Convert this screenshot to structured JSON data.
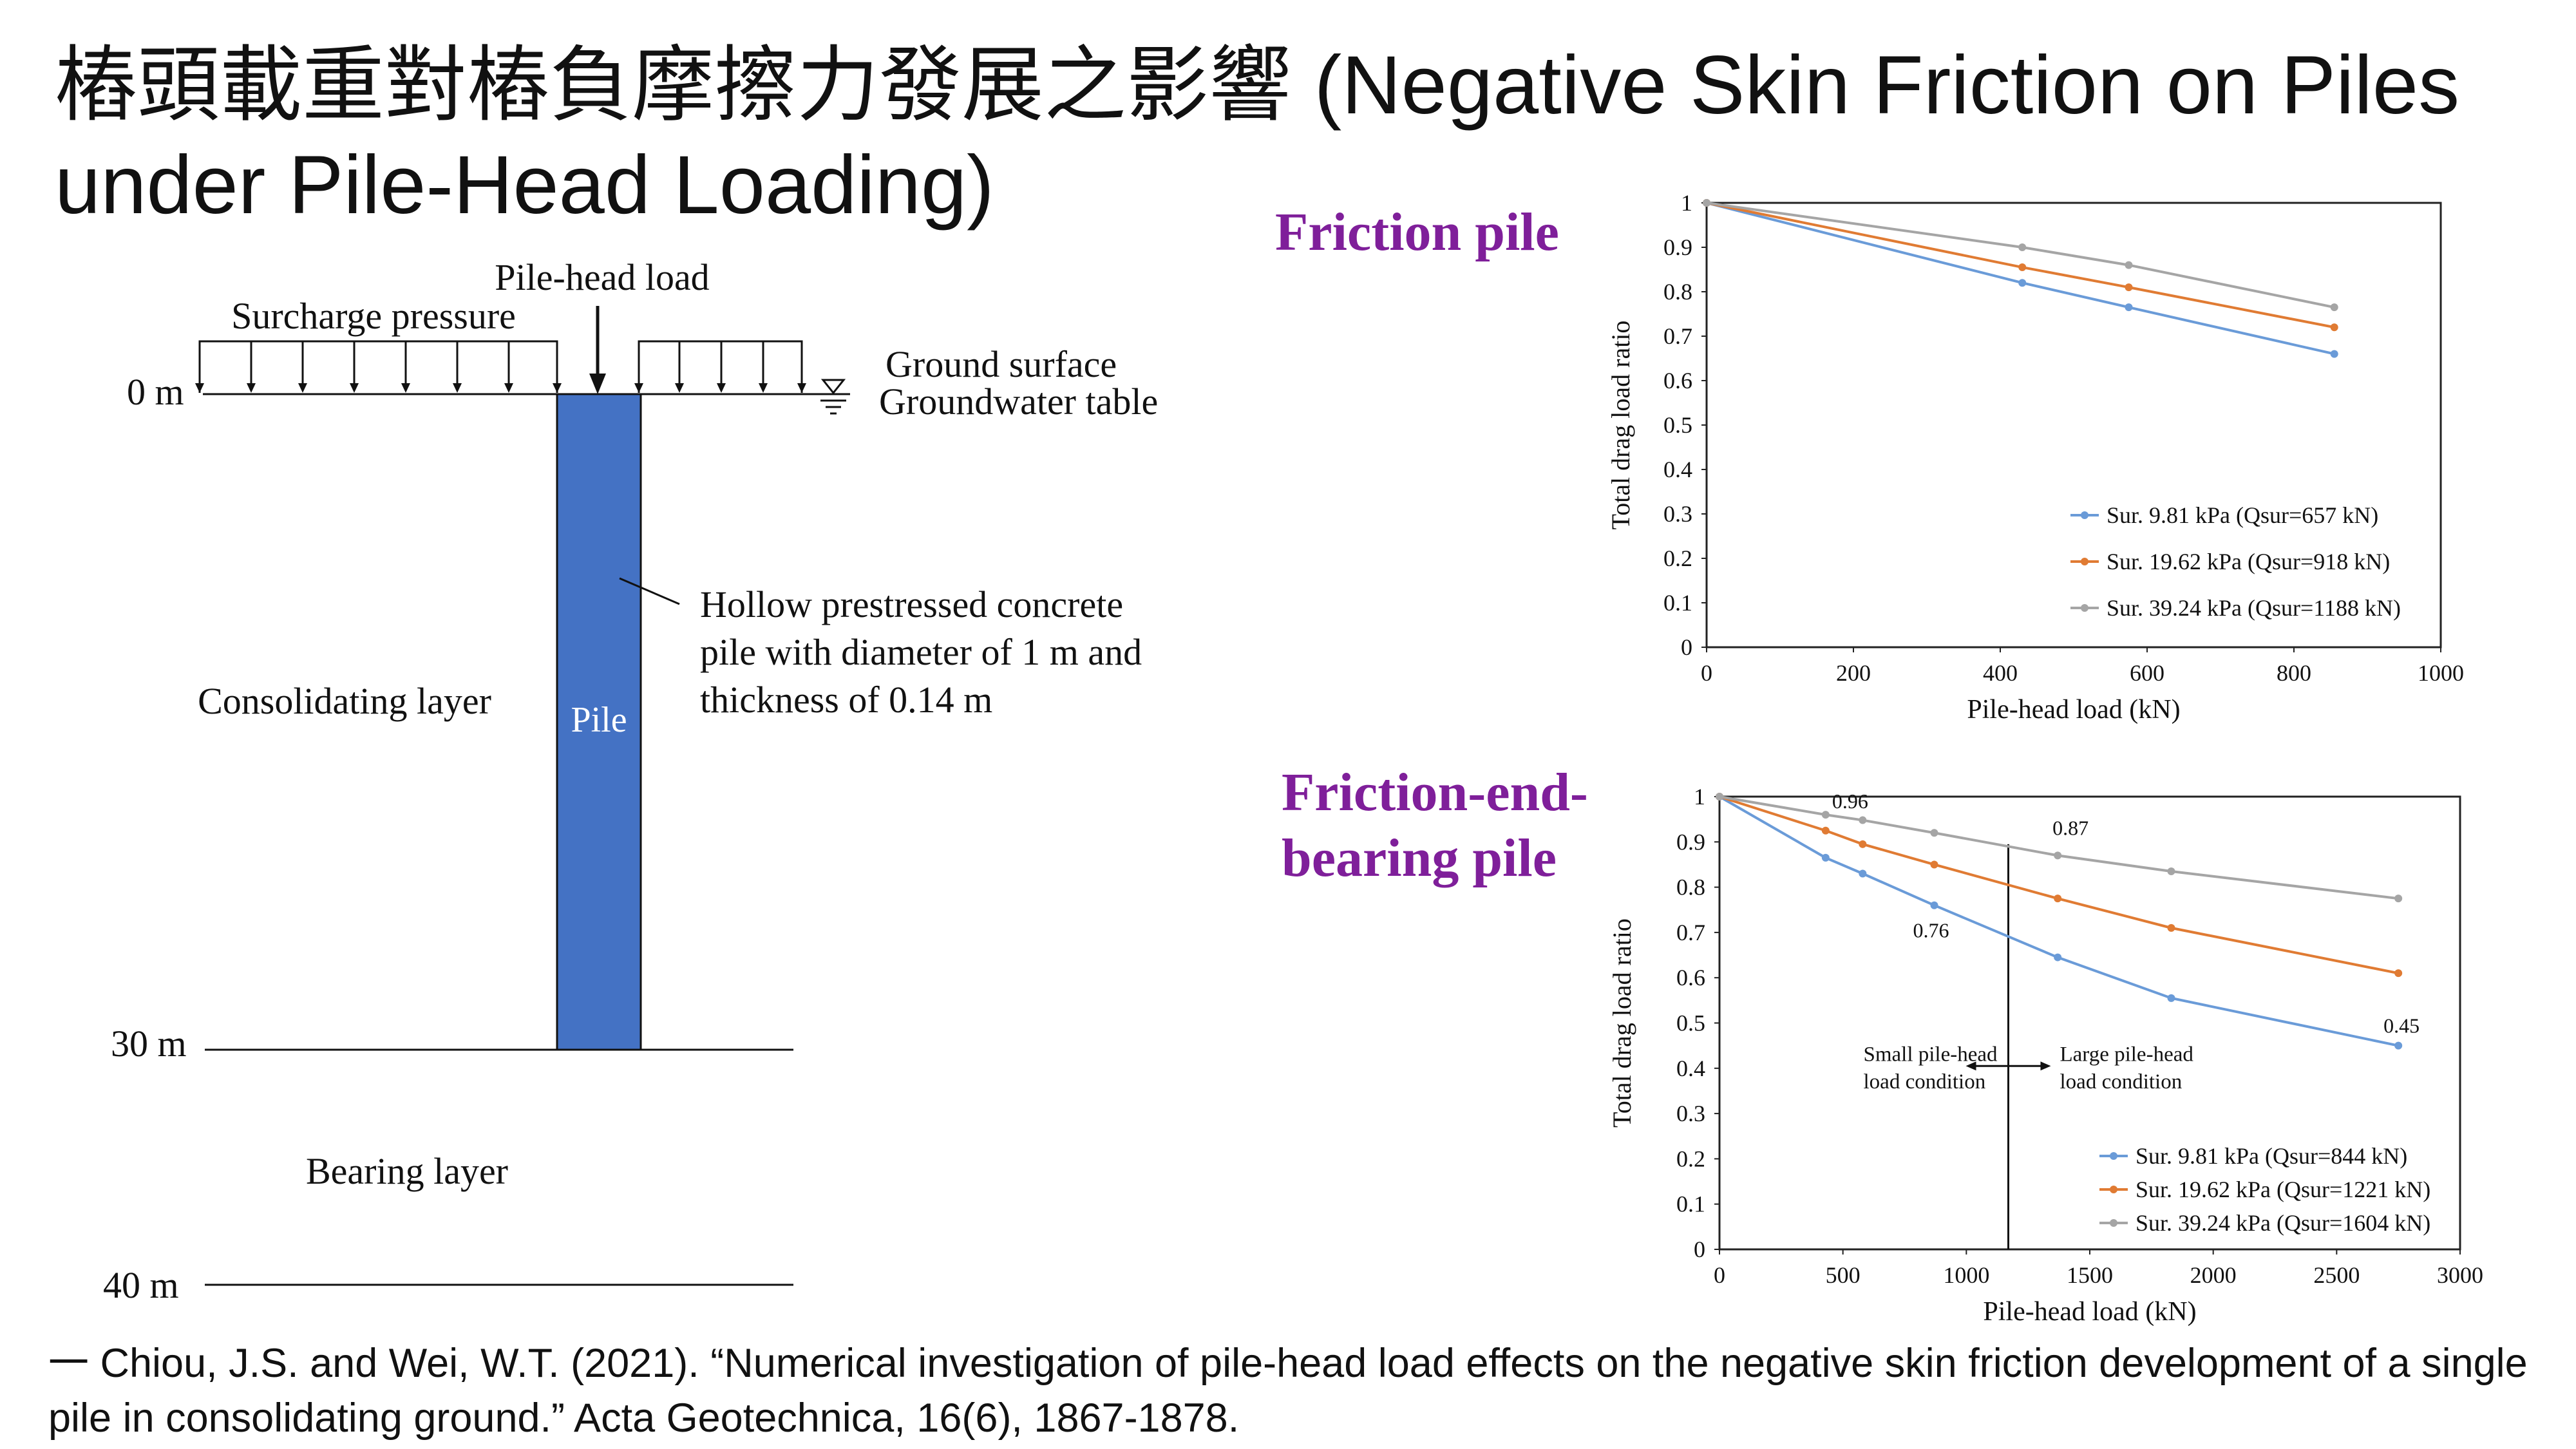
{
  "title": "樁頭載重對樁負摩擦力發展之影響 (Negative Skin Friction on Piles under Pile-Head Loading)",
  "diagram": {
    "pile_head_load": "Pile-head load",
    "surcharge": "Surcharge pressure",
    "ground_surface": "Ground surface",
    "groundwater": "Groundwater table",
    "depth_0": "0 m",
    "depth_30": "30 m",
    "depth_40": "40 m",
    "pile_label": "Pile",
    "pile_desc_1": "Hollow prestressed concrete",
    "pile_desc_2": "pile with diameter of 1 m and",
    "pile_desc_3": "thickness of 0.14 m",
    "consolidating": "Consolidating layer",
    "bearing": "Bearing layer",
    "pile_color": "#4472c4"
  },
  "friction_title": "Friction pile",
  "feb_title_1": "Friction-end-",
  "feb_title_2": "bearing pile",
  "colors": {
    "subtitle": "#7f1f9a",
    "blue": "#6a9bd8",
    "orange": "#e07b33",
    "gray": "#a5a5a5"
  },
  "chart_data": [
    {
      "type": "line",
      "xlabel": "Pile-head load (kN)",
      "ylabel": "Total drag load ratio",
      "xlim": [
        0,
        1000
      ],
      "ylim": [
        0,
        1
      ],
      "xticks": [
        "0",
        "200",
        "400",
        "600",
        "800",
        "1000"
      ],
      "yticks": [
        "0",
        "0.1",
        "0.2",
        "0.3",
        "0.4",
        "0.5",
        "0.6",
        "0.7",
        "0.8",
        "0.9",
        "1"
      ],
      "legend_position": "bottom-right",
      "series": [
        {
          "name": "Sur. 9.81 kPa (Qsur=657 kN)",
          "color": "#6a9bd8",
          "x": [
            0,
            430,
            575,
            855
          ],
          "y": [
            1.0,
            0.82,
            0.765,
            0.66
          ]
        },
        {
          "name": "Sur. 19.62 kPa (Qsur=918 kN)",
          "color": "#e07b33",
          "x": [
            0,
            430,
            575,
            855
          ],
          "y": [
            1.0,
            0.855,
            0.81,
            0.72
          ]
        },
        {
          "name": "Sur. 39.24 kPa (Qsur=1188 kN)",
          "color": "#a5a5a5",
          "x": [
            0,
            430,
            575,
            855
          ],
          "y": [
            1.0,
            0.9,
            0.86,
            0.765
          ]
        }
      ]
    },
    {
      "type": "line",
      "xlabel": "Pile-head load (kN)",
      "ylabel": "Total drag load ratio",
      "xlim": [
        0,
        3000
      ],
      "ylim": [
        0,
        1
      ],
      "xticks": [
        "0",
        "500",
        "1000",
        "1500",
        "2000",
        "2500",
        "3000"
      ],
      "yticks": [
        "0",
        "0.1",
        "0.2",
        "0.3",
        "0.4",
        "0.5",
        "0.6",
        "0.7",
        "0.8",
        "0.9",
        "1"
      ],
      "legend_position": "bottom-right",
      "series": [
        {
          "name": "Sur. 9.81 kPa (Qsur=844 kN)",
          "color": "#6a9bd8",
          "x": [
            0,
            430,
            580,
            870,
            1370,
            1830,
            2750
          ],
          "y": [
            1.0,
            0.865,
            0.83,
            0.76,
            0.645,
            0.555,
            0.45
          ]
        },
        {
          "name": "Sur. 19.62 kPa (Qsur=1221 kN)",
          "color": "#e07b33",
          "x": [
            0,
            430,
            580,
            870,
            1370,
            1830,
            2750
          ],
          "y": [
            1.0,
            0.925,
            0.895,
            0.85,
            0.775,
            0.71,
            0.61
          ]
        },
        {
          "name": "Sur. 39.24 kPa (Qsur=1604 kN)",
          "color": "#a5a5a5",
          "x": [
            0,
            430,
            580,
            870,
            1370,
            1830,
            2750
          ],
          "y": [
            1.0,
            0.96,
            0.948,
            0.92,
            0.87,
            0.835,
            0.775
          ]
        }
      ],
      "vertical_line_x": 1170,
      "point_labels": [
        "0.96",
        "0.87",
        "0.76",
        "0.45"
      ],
      "annotation_small_1": "Small pile-head",
      "annotation_small_2": "load condition",
      "annotation_large_1": "Large pile-head",
      "annotation_large_2": "load condition"
    }
  ],
  "reference": "一 Chiou, J.S. and Wei, W.T. (2021). “Numerical investigation of pile-head load effects on the negative skin friction development of a single pile in consolidating ground.” Acta Geotechnica, 16(6), 1867-1878."
}
